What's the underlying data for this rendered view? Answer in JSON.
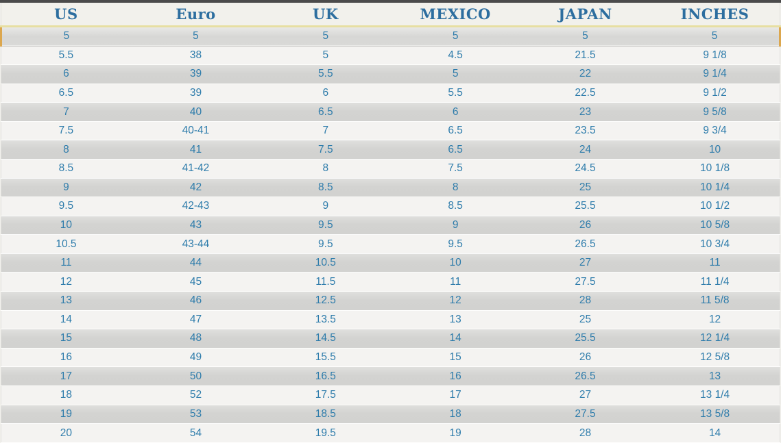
{
  "table": {
    "columns": [
      "US",
      "Euro",
      "UK",
      "MEXICO",
      "JAPAN",
      "INCHES"
    ],
    "rows": [
      [
        "5",
        "5",
        "5",
        "5",
        "5",
        "5"
      ],
      [
        "5.5",
        "38",
        "5",
        "4.5",
        "21.5",
        "9 1/8"
      ],
      [
        "6",
        "39",
        "5.5",
        "5",
        "22",
        "9 1/4"
      ],
      [
        "6.5",
        "39",
        "6",
        "5.5",
        "22.5",
        "9 1/2"
      ],
      [
        "7",
        "40",
        "6.5",
        "6",
        "23",
        "9 5/8"
      ],
      [
        "7.5",
        "40-41",
        "7",
        "6.5",
        "23.5",
        "9 3/4"
      ],
      [
        "8",
        "41",
        "7.5",
        "6.5",
        "24",
        "10"
      ],
      [
        "8.5",
        "41-42",
        "8",
        "7.5",
        "24.5",
        "10 1/8"
      ],
      [
        "9",
        "42",
        "8.5",
        "8",
        "25",
        "10 1/4"
      ],
      [
        "9.5",
        "42-43",
        "9",
        "8.5",
        "25.5",
        "10 1/2"
      ],
      [
        "10",
        "43",
        "9.5",
        "9",
        "26",
        "10 5/8"
      ],
      [
        "10.5",
        "43-44",
        "9.5",
        "9.5",
        "26.5",
        "10 3/4"
      ],
      [
        "11",
        "44",
        "10.5",
        "10",
        "27",
        "11"
      ],
      [
        "12",
        "45",
        "11.5",
        "11",
        "27.5",
        "11 1/4"
      ],
      [
        "13",
        "46",
        "12.5",
        "12",
        "28",
        "11 5/8"
      ],
      [
        "14",
        "47",
        "13.5",
        "13",
        "25",
        "12"
      ],
      [
        "15",
        "48",
        "14.5",
        "14",
        "25.5",
        "12 1/4"
      ],
      [
        "16",
        "49",
        "15.5",
        "15",
        "26",
        "12 5/8"
      ],
      [
        "17",
        "50",
        "16.5",
        "16",
        "26.5",
        "13"
      ],
      [
        "18",
        "52",
        "17.5",
        "17",
        "27",
        "13 1/4"
      ],
      [
        "19",
        "53",
        "18.5",
        "18",
        "27.5",
        "13 5/8"
      ],
      [
        "20",
        "54",
        "19.5",
        "19",
        "28",
        "14"
      ]
    ]
  },
  "colors": {
    "header_text": "#2d6e9f",
    "body_text": "#2e7cab",
    "header_background": "#f2f1ec",
    "divider_yellow": "#e7dfa2",
    "row_light": "#f4f3f1",
    "row_gray": "#d4d4d2",
    "highlight_border": "#dca74e",
    "top_strip": "#4b4b4b"
  },
  "chart_data": {
    "type": "table",
    "title": "Shoe size conversion chart",
    "columns": [
      "US",
      "Euro",
      "UK",
      "MEXICO",
      "JAPAN",
      "INCHES"
    ],
    "rows": [
      [
        "5",
        "5",
        "5",
        "5",
        "5",
        "5"
      ],
      [
        "5.5",
        "38",
        "5",
        "4.5",
        "21.5",
        "9 1/8"
      ],
      [
        "6",
        "39",
        "5.5",
        "5",
        "22",
        "9 1/4"
      ],
      [
        "6.5",
        "39",
        "6",
        "5.5",
        "22.5",
        "9 1/2"
      ],
      [
        "7",
        "40",
        "6.5",
        "6",
        "23",
        "9 5/8"
      ],
      [
        "7.5",
        "40-41",
        "7",
        "6.5",
        "23.5",
        "9 3/4"
      ],
      [
        "8",
        "41",
        "7.5",
        "6.5",
        "24",
        "10"
      ],
      [
        "8.5",
        "41-42",
        "8",
        "7.5",
        "24.5",
        "10 1/8"
      ],
      [
        "9",
        "42",
        "8.5",
        "8",
        "25",
        "10 1/4"
      ],
      [
        "9.5",
        "42-43",
        "9",
        "8.5",
        "25.5",
        "10 1/2"
      ],
      [
        "10",
        "43",
        "9.5",
        "9",
        "26",
        "10 5/8"
      ],
      [
        "10.5",
        "43-44",
        "9.5",
        "9.5",
        "26.5",
        "10 3/4"
      ],
      [
        "11",
        "44",
        "10.5",
        "10",
        "27",
        "11"
      ],
      [
        "12",
        "45",
        "11.5",
        "11",
        "27.5",
        "11 1/4"
      ],
      [
        "13",
        "46",
        "12.5",
        "12",
        "28",
        "11 5/8"
      ],
      [
        "14",
        "47",
        "13.5",
        "13",
        "25",
        "12"
      ],
      [
        "15",
        "48",
        "14.5",
        "14",
        "25.5",
        "12 1/4"
      ],
      [
        "16",
        "49",
        "15.5",
        "15",
        "26",
        "12 5/8"
      ],
      [
        "17",
        "50",
        "16.5",
        "16",
        "26.5",
        "13"
      ],
      [
        "18",
        "52",
        "17.5",
        "17",
        "27",
        "13 1/4"
      ],
      [
        "19",
        "53",
        "18.5",
        "18",
        "27.5",
        "13 5/8"
      ],
      [
        "20",
        "54",
        "19.5",
        "19",
        "28",
        "14"
      ]
    ]
  }
}
